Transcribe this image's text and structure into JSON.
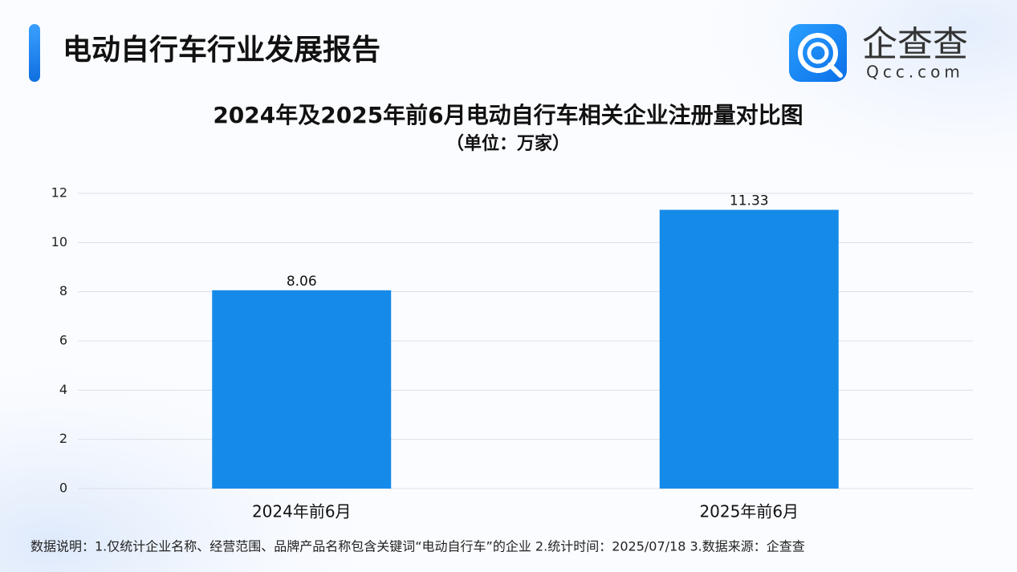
{
  "header": {
    "title": "电动自行车行业发展报告",
    "logo_name": "企查查",
    "logo_domain": "Qcc.com"
  },
  "chart_data": {
    "type": "bar",
    "title": "2024年及2025年前6月电动自行车相关企业注册量对比图",
    "subtitle": "（单位：万家）",
    "categories": [
      "2024年前6月",
      "2025年前6月"
    ],
    "values": [
      8.06,
      11.33
    ],
    "color": "#168ae9",
    "ylim": [
      0,
      12
    ],
    "yticks": [
      0,
      2,
      4,
      6,
      8,
      10,
      12
    ],
    "grid": true
  },
  "footnote": "数据说明：1.仅统计企业名称、经营范围、品牌产品名称包含关键词“电动自行车”的企业   2.统计时间：2025/07/18    3.数据来源：企查查"
}
